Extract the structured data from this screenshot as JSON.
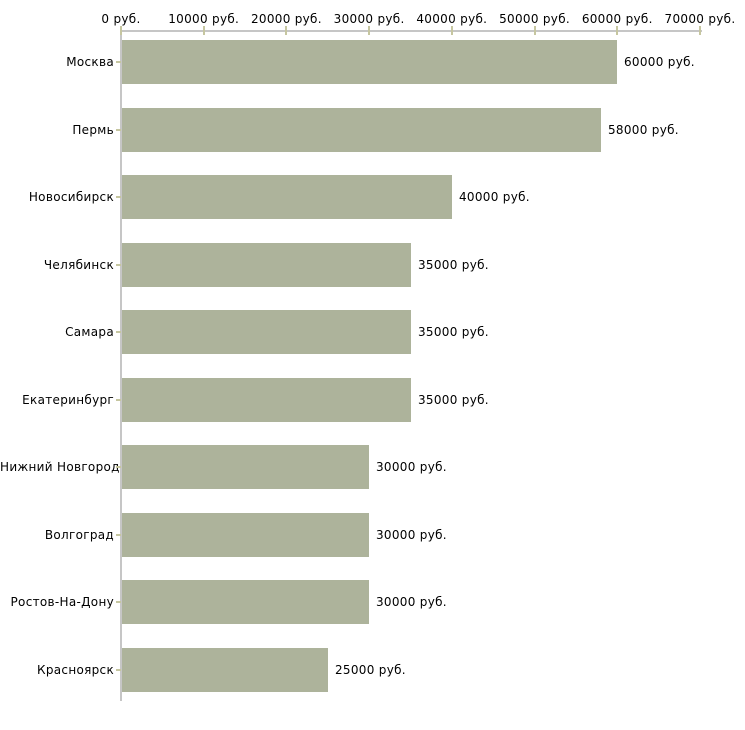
{
  "chart_data": {
    "type": "bar",
    "orientation": "horizontal",
    "title": "",
    "xlabel": "",
    "ylabel": "",
    "unit": "руб.",
    "xlim": [
      0,
      70000
    ],
    "x_ticks": [
      {
        "value": 0,
        "label": "0 руб."
      },
      {
        "value": 10000,
        "label": "10000 руб."
      },
      {
        "value": 20000,
        "label": "20000 руб."
      },
      {
        "value": 30000,
        "label": "30000 руб."
      },
      {
        "value": 40000,
        "label": "40000 руб."
      },
      {
        "value": 50000,
        "label": "50000 руб."
      },
      {
        "value": 60000,
        "label": "60000 руб."
      },
      {
        "value": 70000,
        "label": "70000 руб."
      }
    ],
    "categories": [
      "Москва",
      "Пермь",
      "Новосибирск",
      "Челябинск",
      "Самара",
      "Екатеринбург",
      "Нижний Новгород",
      "Волгоград",
      "Ростов-На-Дону",
      "Красноярск"
    ],
    "values": [
      60000,
      58000,
      40000,
      35000,
      35000,
      35000,
      30000,
      30000,
      30000,
      25000
    ],
    "bar_labels": [
      "60000 руб.",
      "58000 руб.",
      "40000 руб.",
      "35000 руб.",
      "35000 руб.",
      "35000 руб.",
      "30000 руб.",
      "30000 руб.",
      "30000 руб.",
      "25000 руб."
    ],
    "grid": false,
    "legend": false,
    "colors": {
      "bar_fill": "#adb39b",
      "axis_line": "#c6c6c6",
      "tick_mark": "#c6c6a0",
      "text": "#000000",
      "background": "#ffffff"
    }
  }
}
